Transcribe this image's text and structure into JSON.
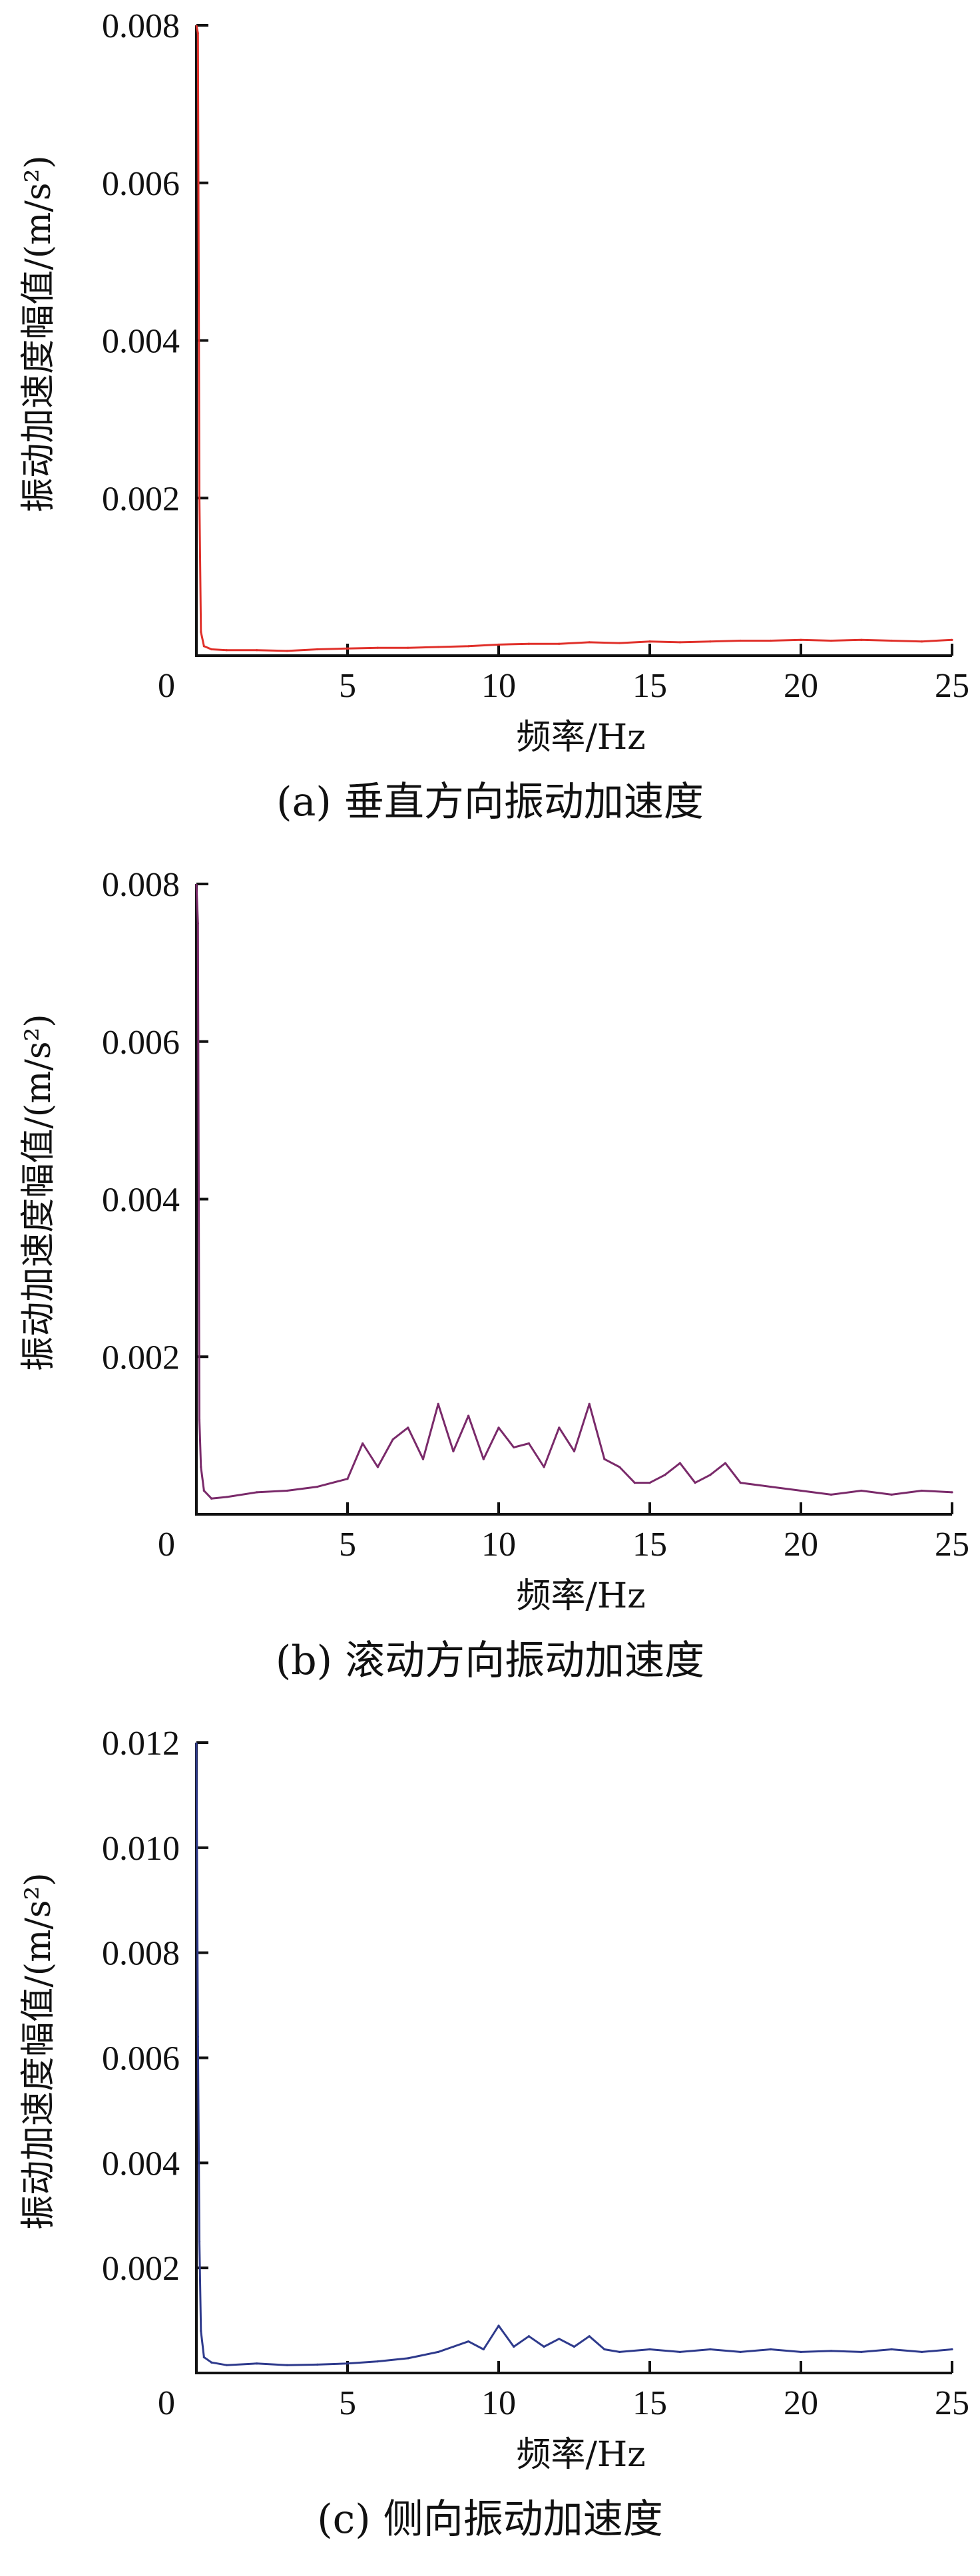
{
  "chart_data": [
    {
      "id": "a",
      "type": "line",
      "caption": "(a)  垂直方向振动加速度",
      "xlabel": "频率/Hz",
      "ylabel": "振动加速度幅值/(m/s²)",
      "xlim": [
        0,
        25
      ],
      "ylim": [
        0,
        0.008
      ],
      "xticks": [
        5,
        10,
        15,
        20,
        25
      ],
      "yticks": [
        0.002,
        0.004,
        0.006,
        0.008
      ],
      "origin_label": "0",
      "color": "#e0302a",
      "series": [
        {
          "x": [
            0.05,
            0.1,
            0.15,
            0.25,
            0.5,
            1,
            2,
            3,
            4,
            5,
            6,
            7,
            8,
            9,
            10,
            11,
            12,
            13,
            14,
            15,
            16,
            17,
            18,
            19,
            20,
            21,
            22,
            23,
            24,
            25
          ],
          "y": [
            0.0079,
            0.002,
            0.0003,
            0.00012,
            8e-05,
            7e-05,
            7e-05,
            6e-05,
            8e-05,
            9e-05,
            0.0001,
            0.0001,
            0.00011,
            0.00012,
            0.00014,
            0.00015,
            0.00015,
            0.00017,
            0.00016,
            0.00018,
            0.00017,
            0.00018,
            0.00019,
            0.00019,
            0.0002,
            0.00019,
            0.0002,
            0.00019,
            0.00018,
            0.0002
          ]
        }
      ]
    },
    {
      "id": "b",
      "type": "line",
      "caption": "(b)  滚动方向振动加速度",
      "xlabel": "频率/Hz",
      "ylabel": "振动加速度幅值/(m/s²)",
      "xlim": [
        0,
        25
      ],
      "ylim": [
        0,
        0.008
      ],
      "xticks": [
        5,
        10,
        15,
        20,
        25
      ],
      "yticks": [
        0.002,
        0.004,
        0.006,
        0.008
      ],
      "origin_label": "0",
      "color": "#7a2a6a",
      "series": [
        {
          "x": [
            0.05,
            0.1,
            0.15,
            0.25,
            0.5,
            1,
            2,
            3,
            4,
            5,
            5.5,
            6,
            6.5,
            7,
            7.5,
            8,
            8.5,
            9,
            9.5,
            10,
            10.5,
            11,
            11.5,
            12,
            12.5,
            13,
            13.5,
            14,
            14.5,
            15,
            15.5,
            16,
            16.5,
            17,
            17.5,
            18,
            19,
            20,
            21,
            22,
            23,
            24,
            25
          ],
          "y": [
            0.0075,
            0.0012,
            0.0006,
            0.0003,
            0.0002,
            0.00022,
            0.00028,
            0.0003,
            0.00035,
            0.00045,
            0.0009,
            0.0006,
            0.00095,
            0.0011,
            0.0007,
            0.0014,
            0.0008,
            0.00125,
            0.0007,
            0.0011,
            0.00085,
            0.0009,
            0.0006,
            0.0011,
            0.0008,
            0.0014,
            0.0007,
            0.0006,
            0.0004,
            0.0004,
            0.0005,
            0.00065,
            0.0004,
            0.0005,
            0.00065,
            0.0004,
            0.00035,
            0.0003,
            0.00025,
            0.0003,
            0.00025,
            0.0003,
            0.00028
          ]
        }
      ]
    },
    {
      "id": "c",
      "type": "line",
      "caption": "(c)  侧向振动加速度",
      "xlabel": "频率/Hz",
      "ylabel": "振动加速度幅值/(m/s²)",
      "xlim": [
        0,
        25
      ],
      "ylim": [
        0,
        0.012
      ],
      "xticks": [
        5,
        10,
        15,
        20,
        25
      ],
      "yticks": [
        0.002,
        0.004,
        0.006,
        0.008,
        0.01,
        0.012
      ],
      "ytick_labels": [
        "0.002",
        "0.004",
        "0.006",
        "0.008",
        "0.010",
        "0.012"
      ],
      "origin_label": "0",
      "color": "#2e3a8c",
      "series": [
        {
          "x": [
            0.05,
            0.1,
            0.15,
            0.25,
            0.5,
            1,
            2,
            3,
            4,
            5,
            6,
            7,
            8,
            8.5,
            9,
            9.5,
            10,
            10.5,
            11,
            11.5,
            12,
            12.5,
            13,
            13.5,
            14,
            15,
            16,
            17,
            18,
            19,
            20,
            21,
            22,
            23,
            24,
            25
          ],
          "y": [
            0.0064,
            0.0025,
            0.0008,
            0.0003,
            0.0002,
            0.00015,
            0.00018,
            0.00015,
            0.00016,
            0.00018,
            0.00022,
            0.00028,
            0.0004,
            0.0005,
            0.0006,
            0.00045,
            0.0009,
            0.0005,
            0.0007,
            0.0005,
            0.00065,
            0.0005,
            0.0007,
            0.00045,
            0.0004,
            0.00045,
            0.0004,
            0.00045,
            0.0004,
            0.00045,
            0.0004,
            0.00042,
            0.0004,
            0.00045,
            0.0004,
            0.00045
          ]
        }
      ]
    }
  ]
}
